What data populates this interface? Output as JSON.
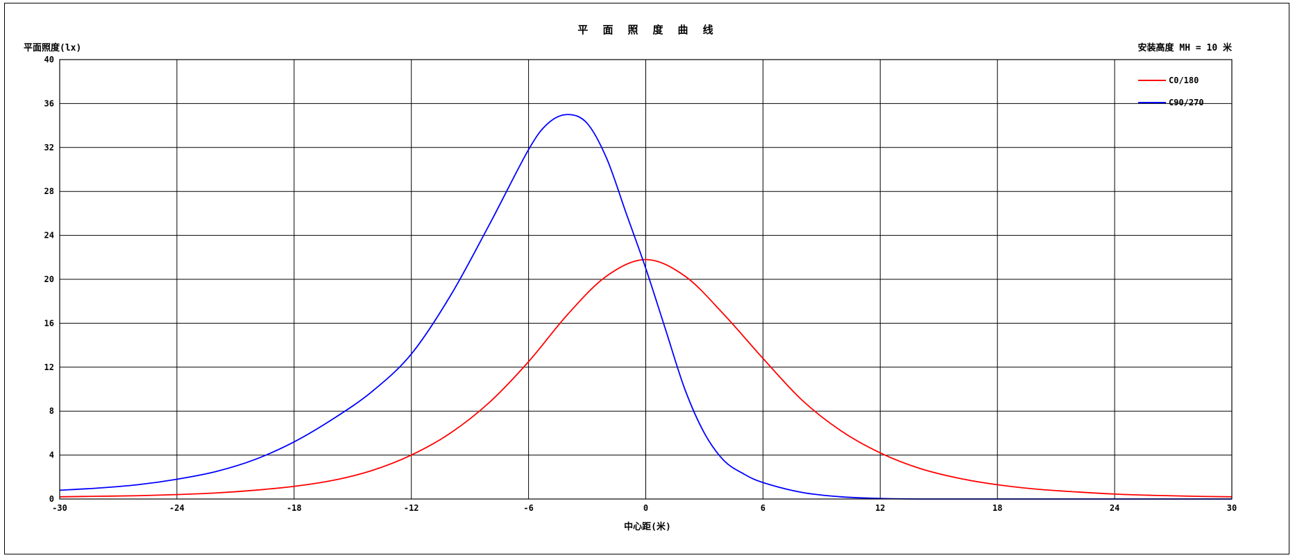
{
  "chart_data": {
    "type": "line",
    "title": "平 面 照 度 曲 线",
    "ylabel": "平面照度(lx)",
    "xlabel": "中心距(米)",
    "annotation": "安装高度 MH = 10 米",
    "xlim": [
      -30,
      30
    ],
    "ylim": [
      0,
      40
    ],
    "xticks": [
      -30,
      -24,
      -18,
      -12,
      -6,
      0,
      6,
      12,
      18,
      24,
      30
    ],
    "yticks": [
      0,
      4,
      8,
      12,
      16,
      20,
      24,
      28,
      32,
      36,
      40
    ],
    "grid": true,
    "legend_position": "top-right",
    "series": [
      {
        "name": "C0/180",
        "color": "#ff0000",
        "x": [
          -30,
          -28,
          -26,
          -24,
          -22,
          -20,
          -18,
          -16,
          -14,
          -12,
          -10,
          -8,
          -6,
          -4,
          -2,
          0,
          2,
          4,
          6,
          8,
          10,
          12,
          14,
          16,
          18,
          20,
          22,
          24,
          26,
          28,
          30
        ],
        "y": [
          0.2,
          0.25,
          0.3,
          0.4,
          0.55,
          0.8,
          1.15,
          1.7,
          2.6,
          4.0,
          6.0,
          8.8,
          12.5,
          16.8,
          20.3,
          21.8,
          20.3,
          16.8,
          12.8,
          9.0,
          6.2,
          4.2,
          2.8,
          1.9,
          1.3,
          0.9,
          0.65,
          0.45,
          0.33,
          0.25,
          0.2
        ]
      },
      {
        "name": "C90/270",
        "color": "#0000ff",
        "x": [
          -30,
          -28,
          -26,
          -24,
          -22,
          -20,
          -18,
          -16,
          -14,
          -12,
          -10,
          -8,
          -6,
          -5,
          -4,
          -3,
          -2,
          -1,
          0,
          1,
          2,
          3,
          4,
          5,
          6,
          8,
          10,
          12,
          14,
          16,
          18,
          20,
          22,
          24,
          26,
          28,
          30
        ],
        "y": [
          0.8,
          1.0,
          1.3,
          1.8,
          2.5,
          3.6,
          5.2,
          7.3,
          9.8,
          13.2,
          18.5,
          25.0,
          31.8,
          34.2,
          35.0,
          34.2,
          31.0,
          26.0,
          21.0,
          15.5,
          10.0,
          6.0,
          3.5,
          2.3,
          1.5,
          0.6,
          0.2,
          0.05,
          0.0,
          0.0,
          0.0,
          0.0,
          0.0,
          0.0,
          0.0,
          0.0,
          0.0
        ]
      }
    ]
  }
}
